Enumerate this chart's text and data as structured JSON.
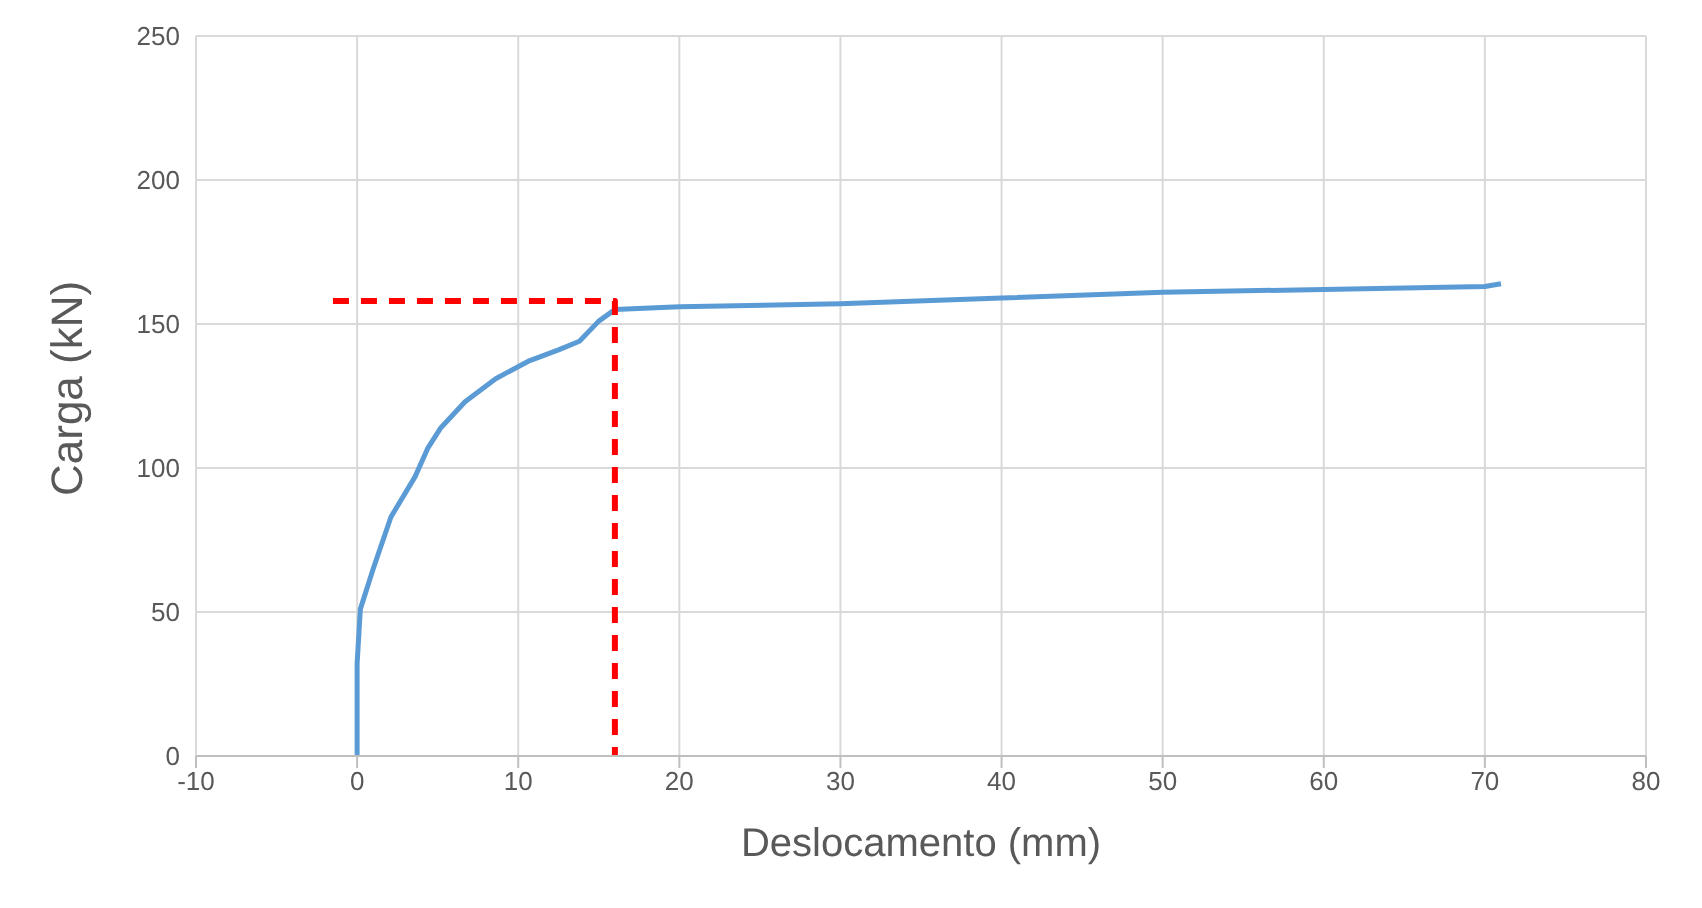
{
  "chart_data": {
    "type": "line",
    "xlabel": "Deslocamento (mm)",
    "ylabel": "Carga (kN)",
    "xlim": [
      -10,
      80
    ],
    "xticks": [
      -10,
      0,
      10,
      20,
      30,
      40,
      50,
      60,
      70,
      80
    ],
    "ylim": [
      0,
      250
    ],
    "yticks": [
      0,
      50,
      100,
      150,
      200,
      250
    ],
    "grid": true,
    "legend": false,
    "marker": "none",
    "series": [
      {
        "color": "#5b9bd5",
        "line_style": "solid",
        "x": [
          0,
          0,
          0.2,
          1,
          2.1,
          3.6,
          4.4,
          5.2,
          6.7,
          8.6,
          10.6,
          12.5,
          13.8,
          15,
          16,
          20,
          30,
          40,
          50,
          60,
          70,
          71
        ],
        "values": [
          0,
          32,
          51,
          65,
          83,
          97,
          107,
          114,
          123,
          131,
          137,
          141,
          144,
          151,
          155,
          156,
          157,
          159,
          161,
          162,
          163,
          164
        ]
      },
      {
        "color": "#ff0000",
        "line_style": "dashed",
        "x": [
          -1.5,
          16,
          16
        ],
        "values": [
          158,
          158,
          0
        ]
      }
    ]
  }
}
